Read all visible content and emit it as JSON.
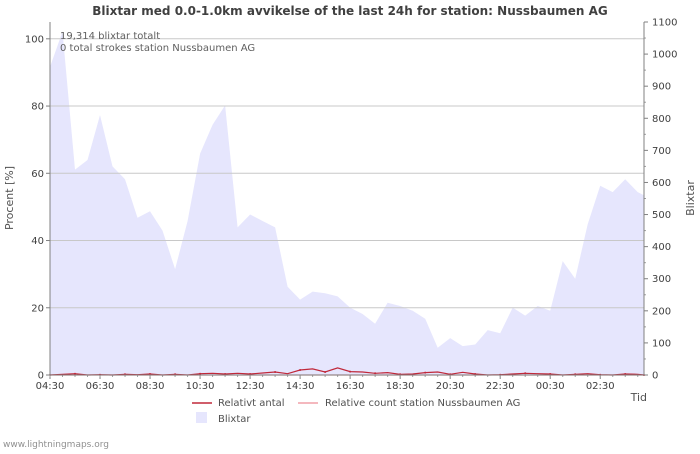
{
  "chart_data": {
    "type": "area",
    "title": "Blixtar med 0.0-1.0km avvikelse of the last 24h for station: Nussbaumen AG",
    "ylabel_left": "Procent   [%]",
    "ylabel_right": "Blixtar",
    "xlabel": "Tid",
    "ylim_left": [
      0,
      105
    ],
    "ylim_right": [
      0,
      1100
    ],
    "yticks_left": [
      0,
      20,
      40,
      60,
      80,
      100
    ],
    "yticks_right": [
      0,
      100,
      200,
      300,
      400,
      500,
      600,
      700,
      800,
      900,
      1000,
      1100
    ],
    "xlim": [
      0,
      23.75
    ],
    "xticks": [
      {
        "pos": 0,
        "label": "04:30"
      },
      {
        "pos": 2,
        "label": "06:30"
      },
      {
        "pos": 4,
        "label": "08:30"
      },
      {
        "pos": 6,
        "label": "10:30"
      },
      {
        "pos": 8,
        "label": "12:30"
      },
      {
        "pos": 10,
        "label": "14:30"
      },
      {
        "pos": 12,
        "label": "16:30"
      },
      {
        "pos": 14,
        "label": "18:30"
      },
      {
        "pos": 16,
        "label": "20:30"
      },
      {
        "pos": 18,
        "label": "22:30"
      },
      {
        "pos": 20,
        "label": "00:30"
      },
      {
        "pos": 22,
        "label": "02:30"
      }
    ],
    "series": [
      {
        "name": "Blixtar",
        "axis": "right",
        "color": "#e6e6fd",
        "x": [
          0,
          0.5,
          1,
          1.5,
          2,
          2.5,
          3,
          3.5,
          4,
          4.5,
          5,
          5.5,
          6,
          6.5,
          7,
          7.5,
          8,
          8.5,
          9,
          9.5,
          10,
          10.5,
          11,
          11.5,
          12,
          12.5,
          13,
          13.5,
          14,
          14.5,
          15,
          15.5,
          16,
          16.5,
          17,
          17.5,
          18,
          18.5,
          19,
          19.5,
          20,
          20.5,
          21,
          21.5,
          22,
          22.5,
          23,
          23.5,
          23.75
        ],
        "values": [
          960,
          1070,
          640,
          670,
          810,
          650,
          610,
          490,
          510,
          450,
          330,
          480,
          690,
          780,
          840,
          460,
          500,
          480,
          460,
          275,
          235,
          260,
          255,
          245,
          210,
          190,
          160,
          225,
          215,
          200,
          175,
          85,
          115,
          90,
          95,
          140,
          130,
          210,
          185,
          215,
          200,
          355,
          300,
          470,
          590,
          570,
          610,
          570,
          560
        ]
      },
      {
        "name": "Relativt antal",
        "axis": "left",
        "color": "#c0283a",
        "x": [
          0,
          0.5,
          1,
          1.5,
          2,
          2.5,
          3,
          3.5,
          4,
          4.5,
          5,
          5.5,
          6,
          6.5,
          7,
          7.5,
          8,
          8.5,
          9,
          9.5,
          10,
          10.5,
          11,
          11.5,
          12,
          12.5,
          13,
          13.5,
          14,
          14.5,
          15,
          15.5,
          16,
          16.5,
          17,
          17.5,
          18,
          18.5,
          19,
          19.5,
          20,
          20.5,
          21,
          21.5,
          22,
          22.5,
          23,
          23.5,
          23.75
        ],
        "values": [
          0,
          0.2,
          0.4,
          0,
          0.1,
          0,
          0.2,
          0.1,
          0.3,
          0,
          0.2,
          0,
          0.4,
          0.5,
          0.3,
          0.5,
          0.3,
          0.6,
          0.9,
          0.4,
          1.5,
          1.8,
          0.9,
          2.1,
          1,
          0.9,
          0.5,
          0.7,
          0.2,
          0.3,
          0.7,
          0.9,
          0.2,
          0.8,
          0.3,
          0,
          0.1,
          0.3,
          0.5,
          0.4,
          0.3,
          0,
          0.2,
          0.4,
          0.1,
          0,
          0.3,
          0.2,
          0
        ]
      },
      {
        "name": "Relative count station Nussbaumen AG",
        "axis": "left",
        "color": "#f0a0a8",
        "x": [
          0,
          23.75
        ],
        "values": [
          0,
          0
        ]
      }
    ],
    "annotations": [
      "19,314 blixtar totalt",
      "0 total strokes station Nussbaumen AG"
    ],
    "legend": [
      "Relativt antal",
      "Relative count station Nussbaumen AG",
      "Blixtar"
    ],
    "legend_position": "bottom"
  },
  "footer": {
    "credit": "www.lightningmaps.org"
  }
}
